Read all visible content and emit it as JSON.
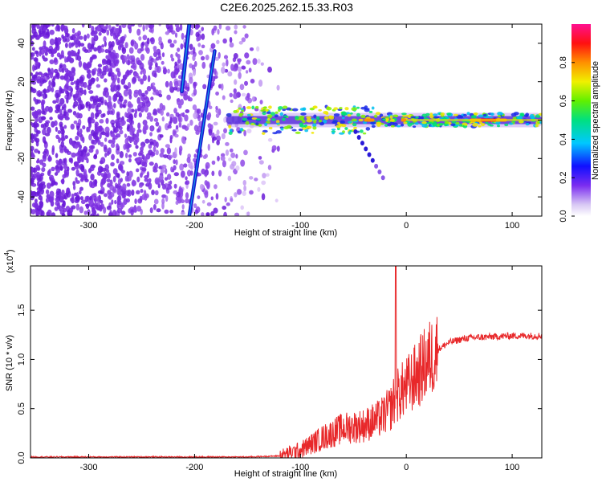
{
  "title": "C2E6.2025.262.15.33.R03",
  "colors": {
    "trace": "#e8282a",
    "axis": "#000000",
    "ridge": "#1a1ad0",
    "scatter": "#6a1ad8"
  },
  "chart_data": [
    {
      "type": "heatmap",
      "name": "spectrogram",
      "xlabel": "Height of straight line (km)",
      "ylabel": "Frequency (Hz)",
      "xlim": [
        -355,
        128
      ],
      "ylim": [
        -50,
        50
      ],
      "xticks": [
        -300,
        -200,
        -100,
        0,
        100
      ],
      "xtick_labels": [
        "-300",
        "-200",
        "-100",
        "0",
        "100"
      ],
      "yticks": [
        -40,
        -20,
        0,
        20,
        40
      ],
      "ytick_labels": [
        "-40",
        "-20",
        "0",
        "20",
        "40"
      ],
      "noise_region_x": [
        -355,
        -120
      ],
      "features": [
        {
          "name": "diagonal streak 1",
          "from": [
            -212,
            15
          ],
          "to": [
            -205,
            50
          ]
        },
        {
          "name": "diagonal streak 2",
          "from": [
            -205,
            -50
          ],
          "to": [
            -181,
            36
          ]
        },
        {
          "name": "zero-Doppler ridge",
          "x_range": [
            -170,
            128
          ],
          "center_hz": 0
        },
        {
          "name": "descending branch",
          "from": [
            -48,
            -6
          ],
          "to": [
            -22,
            -30
          ]
        }
      ],
      "colorbar": {
        "label": "Normalized spectral amplitude",
        "range": [
          0,
          1
        ],
        "ticks": [
          0.0,
          0.2,
          0.4,
          0.6,
          0.8
        ],
        "tick_labels": [
          "0.0",
          "0.2",
          "0.4",
          "0.6",
          "0.8"
        ]
      }
    },
    {
      "type": "line",
      "name": "snr",
      "xlabel": "Height of straight line (km)",
      "ylabel": "SNR (10 * v/v)",
      "y_multiplier": "(x10",
      "y_multiplier_exp": "4",
      "y_multiplier_close": ")",
      "xlim": [
        -355,
        128
      ],
      "ylim": [
        0,
        1.95
      ],
      "xticks": [
        -300,
        -200,
        -100,
        0,
        100
      ],
      "xtick_labels": [
        "-300",
        "-200",
        "-100",
        "0",
        "100"
      ],
      "yticks": [
        0.0,
        0.5,
        1.0,
        1.5
      ],
      "ytick_labels": [
        "0.0",
        "0.5",
        "1.0",
        "1.5"
      ],
      "trend_x": [
        -355,
        -250,
        -150,
        -120,
        -100,
        -80,
        -60,
        -40,
        -25,
        -15,
        -10,
        0,
        10,
        20,
        30,
        40,
        50,
        60,
        80,
        100,
        128
      ],
      "trend_y": [
        0.01,
        0.01,
        0.01,
        0.02,
        0.08,
        0.2,
        0.3,
        0.33,
        0.4,
        0.5,
        0.62,
        0.72,
        0.84,
        0.98,
        1.1,
        1.17,
        1.2,
        1.22,
        1.23,
        1.24,
        1.24
      ],
      "spike": {
        "x": -10,
        "y": 1.95
      }
    }
  ]
}
